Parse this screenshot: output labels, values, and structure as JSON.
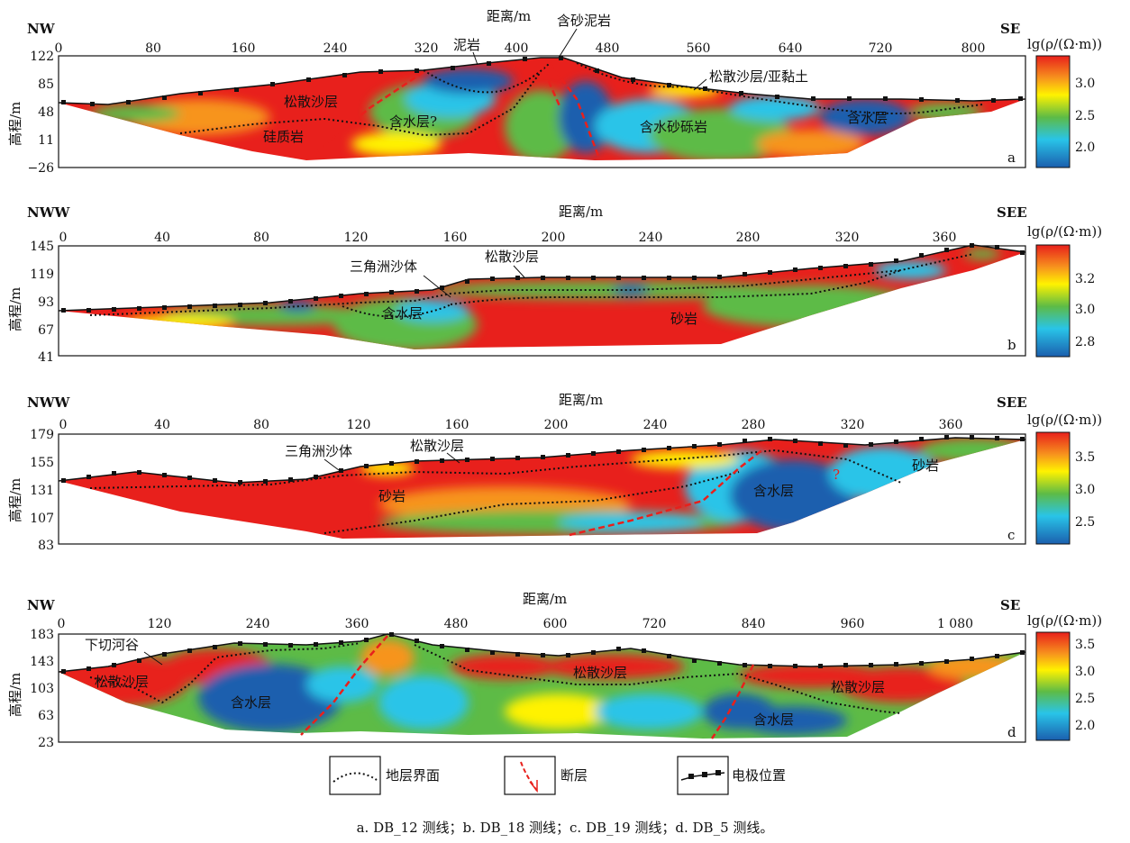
{
  "caption": "a. DB_12 测线；b. DB_18 测线；c. DB_19 测线；d. DB_5 测线。",
  "legend": {
    "stratum": "地层界面",
    "fault": "断层",
    "electrode": "电极位置"
  },
  "colors": {
    "red": "#e8201c",
    "orange": "#f7941d",
    "yellow": "#fff200",
    "green": "#5dbb46",
    "cyan": "#29c4e8",
    "blue": "#1b5fae",
    "fault": "#e8201c"
  },
  "panels": [
    {
      "id": "a",
      "letter": "a",
      "left_dir": "NW",
      "right_dir": "SE",
      "xlabel": "距离/m",
      "ylabel": "高程/m",
      "x_ticks": [
        "0",
        "80",
        "160",
        "240",
        "320",
        "400",
        "480",
        "560",
        "640",
        "720",
        "800"
      ],
      "y_ticks": [
        "122",
        "85",
        "48",
        "11",
        "−26"
      ],
      "colorbar_title": "lg(ρ/(Ω·m))",
      "colorbar_ticks": [
        "3.0",
        "2.5",
        "2.0"
      ],
      "annotations": [
        "含砂泥岩",
        "泥岩",
        "松散沙层/亚黏土",
        "松散沙层",
        "含水层?",
        "硅质岩",
        "含水砂砾岩",
        "含水层"
      ]
    },
    {
      "id": "b",
      "letter": "b",
      "left_dir": "NWW",
      "right_dir": "SEE",
      "xlabel": "距离/m",
      "ylabel": "高程/m",
      "x_ticks": [
        "0",
        "40",
        "80",
        "120",
        "160",
        "200",
        "240",
        "280",
        "320",
        "360"
      ],
      "y_ticks": [
        "145",
        "119",
        "93",
        "67",
        "41"
      ],
      "colorbar_title": "lg(ρ/(Ω·m))",
      "colorbar_ticks": [
        "3.2",
        "3.0",
        "2.8"
      ],
      "annotations": [
        "松散沙层",
        "三角洲沙体",
        "含水层",
        "砂岩"
      ]
    },
    {
      "id": "c",
      "letter": "c",
      "left_dir": "NWW",
      "right_dir": "SEE",
      "xlabel": "距离/m",
      "ylabel": "高程/m",
      "x_ticks": [
        "0",
        "40",
        "80",
        "120",
        "160",
        "200",
        "240",
        "280",
        "320",
        "360"
      ],
      "y_ticks": [
        "179",
        "155",
        "131",
        "107",
        "83"
      ],
      "colorbar_title": "lg(ρ/(Ω·m))",
      "colorbar_ticks": [
        "3.5",
        "3.0",
        "2.5"
      ],
      "annotations": [
        "三角洲沙体",
        "松散沙层",
        "砂岩",
        "含水层",
        "?",
        "砂岩"
      ]
    },
    {
      "id": "d",
      "letter": "d",
      "left_dir": "NW",
      "right_dir": "SE",
      "xlabel": "距离/m",
      "ylabel": "高程/m",
      "x_ticks": [
        "0",
        "120",
        "240",
        "360",
        "480",
        "600",
        "720",
        "840",
        "960",
        "1 080"
      ],
      "y_ticks": [
        "183",
        "143",
        "103",
        "63",
        "23"
      ],
      "colorbar_title": "lg(ρ/(Ω·m))",
      "colorbar_ticks": [
        "3.5",
        "3.0",
        "2.5",
        "2.0"
      ],
      "annotations": [
        "下切河谷",
        "松散沙层",
        "含水层",
        "松散沙层",
        "松散沙层",
        "含水层"
      ]
    }
  ]
}
